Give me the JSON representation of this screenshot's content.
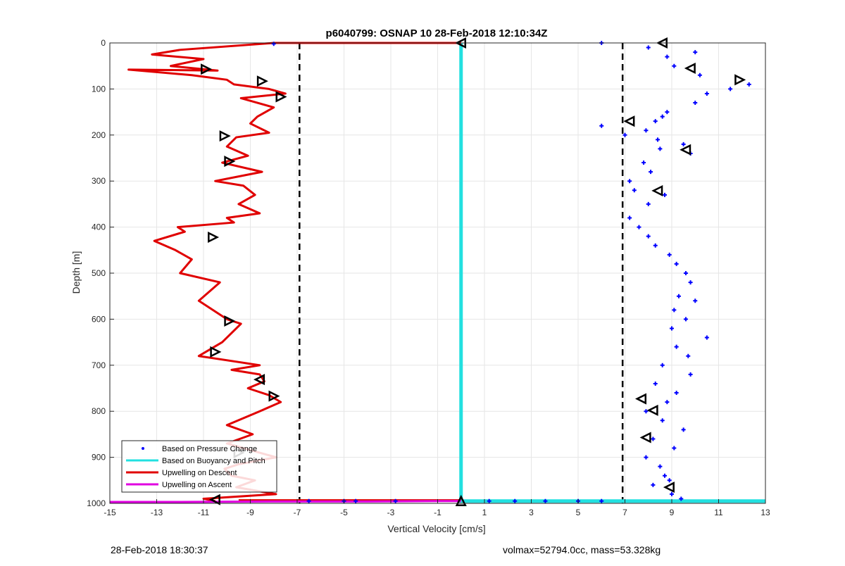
{
  "chart_data": {
    "type": "scatter",
    "title": "p6040799: OSNAP 10 28-Feb-2018 12:10:34Z",
    "xlabel": "Vertical Velocity [cm/s]",
    "ylabel": "Depth [m]",
    "xlim": [
      -15,
      13
    ],
    "ylim": [
      0,
      1000
    ],
    "y_reversed": true,
    "grid": true,
    "xticks": [
      -15,
      -13,
      -11,
      -9,
      -7,
      -5,
      -3,
      -1,
      1,
      3,
      5,
      7,
      9,
      11,
      13
    ],
    "yticks": [
      0,
      100,
      200,
      300,
      400,
      500,
      600,
      700,
      800,
      900,
      1000
    ],
    "xtick_labels": [
      "-15",
      "-13",
      "-11",
      "-9",
      "-7",
      "-5",
      "-3",
      "-1",
      "1",
      "3",
      "5",
      "7",
      "9",
      "11",
      "13"
    ],
    "ytick_labels": [
      "0",
      "100",
      "200",
      "300",
      "400",
      "500",
      "600",
      "700",
      "800",
      "900",
      "1000"
    ],
    "legend_position": "bottom-left",
    "legend": [
      {
        "label": "Based on Pressure Change",
        "color": "#0000ff",
        "style": "dot"
      },
      {
        "label": "Based on Buoyancy and Pitch",
        "color": "#22e0e0",
        "style": "line"
      },
      {
        "label": "Upwelling on Descent",
        "color": "#e00000",
        "style": "line"
      },
      {
        "label": "Upwelling on Ascent",
        "color": "#e000e0",
        "style": "line"
      }
    ],
    "series": [
      {
        "name": "Upwelling on Descent",
        "color": "#e00000",
        "kind": "line",
        "x": [
          -8.0,
          -12.0,
          -13.2,
          -11.0,
          -12.4,
          -10.4,
          -14.2,
          -11.5,
          -10.0,
          -9.7,
          -8.2,
          -7.5,
          -9.4,
          -8.0,
          -8.7,
          -9.0,
          -8.2,
          -9.6,
          -10.0,
          -9.1,
          -10.2,
          -8.5,
          -10.5,
          -9.3,
          -8.8,
          -9.5,
          -8.6,
          -10.0,
          -9.7,
          -12.1,
          -11.8,
          -13.1,
          -12.2,
          -11.5,
          -12.0,
          -10.3,
          -11.2,
          -10.0,
          -9.4,
          -10.2,
          -11.2,
          -8.6,
          -9.8,
          -8.6,
          -8.4,
          -9.1,
          -8.2,
          -7.7,
          -8.6,
          -10.0,
          -8.9,
          -10.0,
          -7.9,
          -9.5,
          -10.1,
          -9.8,
          -8.8,
          -9.6,
          -7.9,
          -11.0,
          -10.5
        ],
        "y": [
          0,
          15,
          25,
          35,
          50,
          60,
          58,
          70,
          80,
          90,
          100,
          110,
          120,
          140,
          160,
          175,
          195,
          205,
          225,
          245,
          260,
          280,
          300,
          310,
          330,
          350,
          370,
          380,
          390,
          400,
          410,
          430,
          450,
          470,
          500,
          520,
          560,
          600,
          610,
          650,
          680,
          700,
          710,
          720,
          735,
          750,
          765,
          780,
          800,
          830,
          850,
          870,
          900,
          915,
          925,
          940,
          950,
          965,
          980,
          990,
          995
        ]
      },
      {
        "name": "Based on Pressure Change",
        "color": "#0000ff",
        "kind": "scatter",
        "x": [
          6.0,
          8.0,
          8.8,
          9.1,
          10.0,
          10.2,
          11.5,
          12.3,
          10.5,
          10.0,
          8.6,
          8.8,
          8.3,
          7.9,
          6.0,
          7.0,
          8.4,
          9.5,
          9.8,
          8.5,
          7.8,
          7.2,
          8.1,
          7.4,
          8.7,
          8.0,
          7.2,
          7.6,
          8.0,
          8.3,
          8.9,
          9.2,
          9.6,
          9.8,
          9.3,
          10.0,
          9.1,
          9.6,
          9.0,
          10.5,
          9.2,
          9.7,
          8.6,
          9.8,
          8.3,
          9.2,
          8.8,
          7.9,
          8.6,
          9.5,
          8.2,
          9.1,
          7.9,
          8.5,
          8.7,
          8.9,
          8.2,
          9.0,
          9.4,
          1.2,
          2.3,
          3.6,
          5.0,
          6.0,
          -2.8,
          -4.5,
          -5.0,
          -6.5,
          -8.0
        ],
        "y": [
          0,
          10,
          30,
          50,
          20,
          70,
          100,
          90,
          110,
          130,
          160,
          150,
          170,
          190,
          180,
          200,
          210,
          220,
          240,
          230,
          260,
          300,
          280,
          320,
          330,
          350,
          380,
          400,
          420,
          440,
          460,
          480,
          500,
          520,
          550,
          560,
          580,
          600,
          620,
          640,
          660,
          680,
          700,
          720,
          740,
          760,
          780,
          800,
          820,
          840,
          860,
          880,
          900,
          920,
          940,
          950,
          960,
          980,
          990,
          995,
          995,
          995,
          995,
          995,
          995,
          995,
          995,
          995,
          2
        ]
      },
      {
        "name": "Based on Buoyancy and Pitch",
        "color": "#22e0e0",
        "kind": "line",
        "x": [
          0.0,
          0.0,
          0.1,
          2.0,
          6.0,
          9.0,
          13.0
        ],
        "y": [
          0,
          995,
          995,
          995,
          995,
          995,
          995
        ]
      },
      {
        "name": "Upwelling on Ascent",
        "color": "#e000e0",
        "kind": "line",
        "x": [
          -15.0,
          -12.0,
          -8.0,
          -4.0,
          -1.0,
          0.0
        ],
        "y": [
          997,
          997,
          996,
          996,
          995,
          995
        ]
      }
    ],
    "annotations": {
      "descent_transition": {
        "x": [
          -8.0,
          0.0
        ],
        "y": [
          0,
          0
        ]
      },
      "ascent_transition": {
        "x": [
          -9.5,
          0.0
        ],
        "y": [
          993,
          993
        ]
      },
      "dashed_verticals": [
        -6.9,
        6.9
      ],
      "triangles_left_group": [
        [
          -10.9,
          57,
          "right"
        ],
        [
          -8.5,
          83,
          "right"
        ],
        [
          -7.7,
          117,
          "right"
        ],
        [
          -10.1,
          202,
          "right"
        ],
        [
          -9.9,
          257,
          "right"
        ],
        [
          -10.6,
          422,
          "right"
        ],
        [
          -9.9,
          604,
          "right"
        ],
        [
          -10.5,
          671,
          "right"
        ],
        [
          -8.6,
          731,
          "left"
        ],
        [
          -8.0,
          767,
          "right"
        ],
        [
          -10.5,
          992,
          "left"
        ],
        [
          -9.5,
          890,
          "right"
        ]
      ],
      "triangles_right_group": [
        [
          8.6,
          0,
          "left"
        ],
        [
          9.8,
          55,
          "left"
        ],
        [
          11.9,
          80,
          "right"
        ],
        [
          7.2,
          170,
          "left"
        ],
        [
          9.6,
          232,
          "left"
        ],
        [
          8.4,
          321,
          "left"
        ],
        [
          7.7,
          773,
          "left"
        ],
        [
          7.9,
          857,
          "left"
        ],
        [
          8.9,
          965,
          "left"
        ],
        [
          8.2,
          798,
          "left"
        ]
      ],
      "triangles_zero": [
        [
          0.0,
          0,
          "left"
        ],
        [
          0.0,
          995,
          "up"
        ]
      ]
    }
  },
  "footer": {
    "left_text": "28-Feb-2018 18:30:37",
    "right_text": "volmax=52794.0cc, mass=53.328kg"
  }
}
